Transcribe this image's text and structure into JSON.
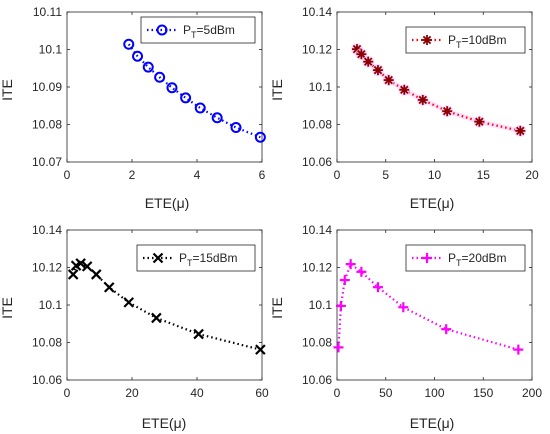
{
  "figure": {
    "panels": [
      {
        "id": "p1",
        "xlabel": "ETE(μ)",
        "ylabel": "ITE",
        "legend_main": "P",
        "legend_sub": "T",
        "legend_rest": "=5dBm"
      },
      {
        "id": "p2",
        "xlabel": "ETE(μ)",
        "ylabel": "ITE",
        "legend_main": "P",
        "legend_sub": "T",
        "legend_rest": "=10dBm"
      },
      {
        "id": "p3",
        "xlabel": "ETE(μ)",
        "ylabel": "ITE",
        "legend_main": "P",
        "legend_sub": "T",
        "legend_rest": "=15dBm"
      },
      {
        "id": "p4",
        "xlabel": "ETE(μ)",
        "ylabel": "ITE",
        "legend_main": "P",
        "legend_sub": "T",
        "legend_rest": "=20dBm"
      }
    ]
  },
  "chart_data": [
    {
      "type": "line",
      "xlabel": "ETE(μ)",
      "ylabel": "ITE",
      "xlim": [
        0,
        6
      ],
      "ylim": [
        10.07,
        10.11
      ],
      "xticks": [
        0,
        2,
        4,
        6
      ],
      "yticks": [
        10.07,
        10.08,
        10.09,
        10.1,
        10.11
      ],
      "ytick_labels": [
        "10.07",
        "10.08",
        "10.09",
        "10.1",
        "10.11"
      ],
      "grid": false,
      "legend_position": "top-right",
      "series": [
        {
          "name": "PT=5dBm",
          "color": "#0000ff",
          "marker": "circle",
          "line_style": "dotted",
          "x": [
            1.9,
            2.17,
            2.5,
            2.85,
            3.23,
            3.65,
            4.1,
            4.62,
            5.2,
            5.95
          ],
          "y": [
            10.1014,
            10.0982,
            10.0953,
            10.0926,
            10.0898,
            10.0871,
            10.0844,
            10.0818,
            10.0792,
            10.0766
          ]
        }
      ]
    },
    {
      "type": "line",
      "xlabel": "ETE(μ)",
      "ylabel": "ITE",
      "xlim": [
        0,
        20
      ],
      "ylim": [
        10.06,
        10.14
      ],
      "xticks": [
        0,
        5,
        10,
        15,
        20
      ],
      "yticks": [
        10.06,
        10.08,
        10.1,
        10.12,
        10.14
      ],
      "ytick_labels": [
        "10.06",
        "10.08",
        "10.1",
        "10.12",
        "10.14"
      ],
      "grid": false,
      "legend_position": "top-right",
      "series": [
        {
          "name": "PT=10dBm",
          "color": "#ff0000",
          "marker": "asterisk",
          "line_style": "dotted",
          "x": [
            2.05,
            2.5,
            3.2,
            4.2,
            5.3,
            6.9,
            8.8,
            11.3,
            14.6,
            18.8
          ],
          "y": [
            10.1202,
            10.1175,
            10.1135,
            10.109,
            10.1037,
            10.0985,
            10.0931,
            10.0871,
            10.0815,
            10.0766
          ]
        }
      ]
    },
    {
      "type": "line",
      "xlabel": "ETE(μ)",
      "ylabel": "ITE",
      "xlim": [
        0,
        60
      ],
      "ylim": [
        10.06,
        10.14
      ],
      "xticks": [
        0,
        20,
        40,
        60
      ],
      "yticks": [
        10.06,
        10.08,
        10.1,
        10.12,
        10.14
      ],
      "ytick_labels": [
        "10.06",
        "10.08",
        "10.1",
        "10.12",
        "10.14"
      ],
      "grid": false,
      "legend_position": "top-right",
      "series": [
        {
          "name": "PT=15dBm",
          "color": "#000000",
          "marker": "x",
          "line_style": "dotted",
          "x": [
            1.9,
            2.8,
            4.2,
            6.2,
            9.0,
            13.0,
            19.0,
            27.5,
            40.5,
            59.5
          ],
          "y": [
            10.1163,
            10.121,
            10.1222,
            10.1206,
            10.1163,
            10.1094,
            10.1014,
            10.0931,
            10.0845,
            10.0762
          ]
        }
      ]
    },
    {
      "type": "line",
      "xlabel": "ETE(μ)",
      "ylabel": "ITE",
      "xlim": [
        0,
        200
      ],
      "ylim": [
        10.06,
        10.14
      ],
      "xticks": [
        0,
        50,
        100,
        150,
        200
      ],
      "yticks": [
        10.06,
        10.08,
        10.1,
        10.12,
        10.14
      ],
      "ytick_labels": [
        "10.06",
        "10.08",
        "10.1",
        "10.12",
        "10.14"
      ],
      "grid": false,
      "legend_position": "top-right",
      "series": [
        {
          "name": "PT=20dBm",
          "color": "#ff00ff",
          "marker": "plus",
          "line_style": "dotted",
          "x": [
            1.5,
            4.0,
            8.0,
            14.0,
            25.0,
            42.0,
            68.0,
            112.0,
            186.0
          ],
          "y": [
            10.0774,
            10.0995,
            10.1133,
            10.1218,
            10.1177,
            10.1095,
            10.0988,
            10.0871,
            10.0762
          ]
        }
      ]
    }
  ]
}
